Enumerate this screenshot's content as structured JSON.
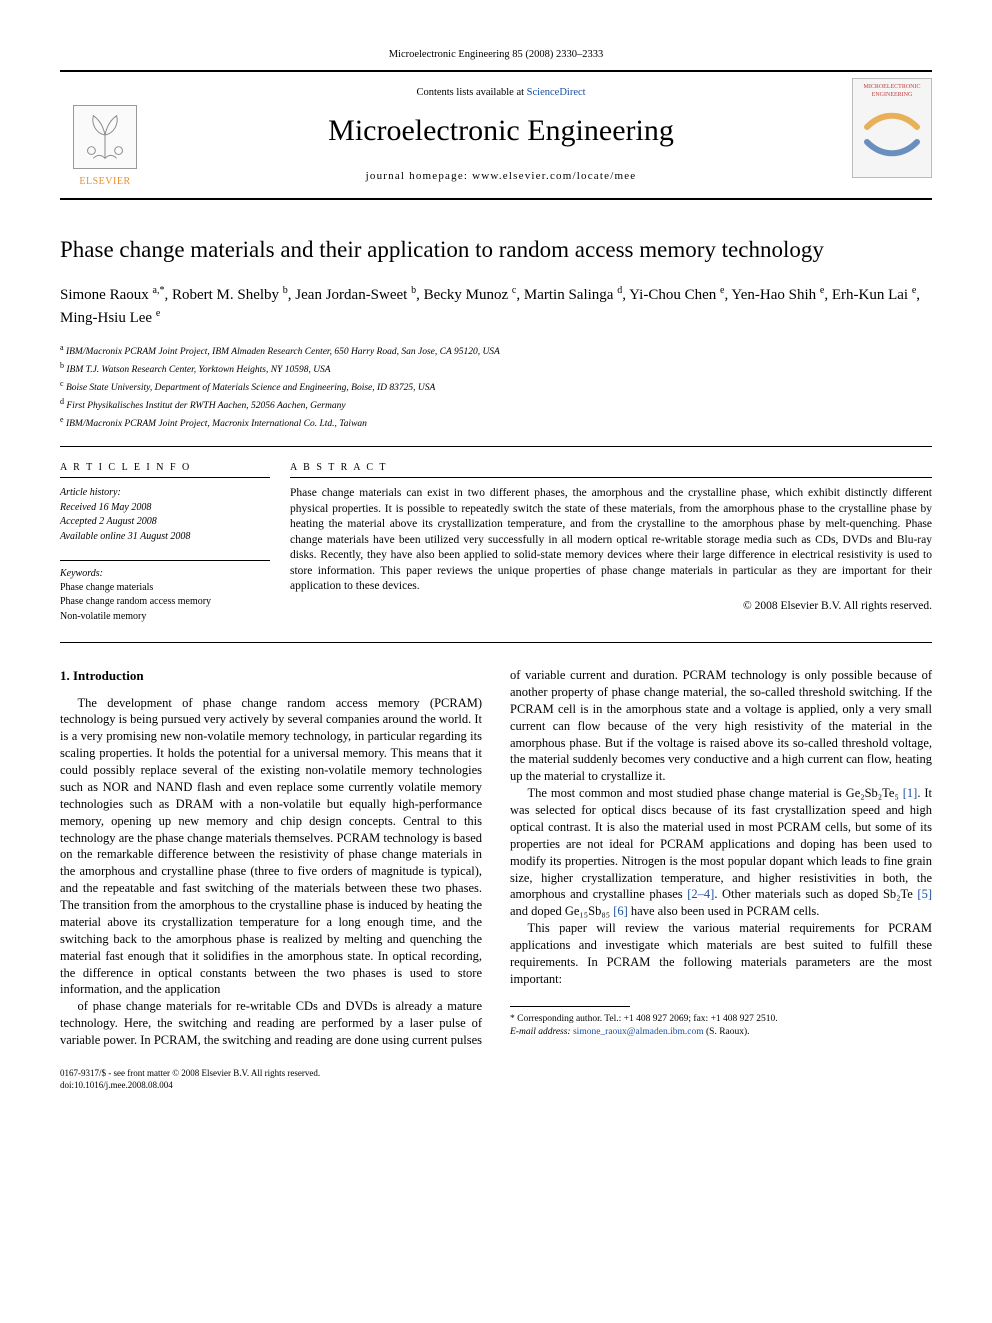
{
  "top_journal_line": "Microelectronic Engineering 85 (2008) 2330–2333",
  "header": {
    "contents_prefix": "Contents lists available at ",
    "contents_link": "ScienceDirect",
    "journal_title": "Microelectronic Engineering",
    "homepage_prefix": "journal homepage: ",
    "homepage_url": "www.elsevier.com/locate/mee",
    "publisher_name": "ELSEVIER",
    "cover_label_top": "MICROELECTRONIC",
    "cover_label_bottom": "ENGINEERING"
  },
  "article": {
    "title": "Phase change materials and their application to random access memory technology",
    "authors_html": "Simone Raoux <sup>a,*</sup>, Robert M. Shelby <sup>b</sup>, Jean Jordan-Sweet <sup>b</sup>, Becky Munoz <sup>c</sup>, Martin Salinga <sup>d</sup>, Yi-Chou Chen <sup>e</sup>, Yen-Hao Shih <sup>e</sup>, Erh-Kun Lai <sup>e</sup>, Ming-Hsiu Lee <sup>e</sup>",
    "affiliations": [
      "a IBM/Macronix PCRAM Joint Project, IBM Almaden Research Center, 650 Harry Road, San Jose, CA 95120, USA",
      "b IBM T.J. Watson Research Center, Yorktown Heights, NY 10598, USA",
      "c Boise State University, Department of Materials Science and Engineering, Boise, ID 83725, USA",
      "d First Physikalisches Institut der RWTH Aachen, 52056 Aachen, Germany",
      "e IBM/Macronix PCRAM Joint Project, Macronix International Co. Ltd., Taiwan"
    ]
  },
  "info": {
    "heading": "A R T I C L E   I N F O",
    "history_label": "Article history:",
    "history": [
      "Received 16 May 2008",
      "Accepted 2 August 2008",
      "Available online 31 August 2008"
    ],
    "keywords_label": "Keywords:",
    "keywords": [
      "Phase change materials",
      "Phase change random access memory",
      "Non-volatile memory"
    ]
  },
  "abstract": {
    "heading": "A B S T R A C T",
    "text": "Phase change materials can exist in two different phases, the amorphous and the crystalline phase, which exhibit distinctly different physical properties. It is possible to repeatedly switch the state of these materials, from the amorphous phase to the crystalline phase by heating the material above its crystallization temperature, and from the crystalline to the amorphous phase by melt-quenching. Phase change materials have been utilized very successfully in all modern optical re-writable storage media such as CDs, DVDs and Blu-ray disks. Recently, they have also been applied to solid-state memory devices where their large difference in electrical resistivity is used to store information. This paper reviews the unique properties of phase change materials in particular as they are important for their application to these devices.",
    "copyright": "© 2008 Elsevier B.V. All rights reserved."
  },
  "body": {
    "section_heading": "1. Introduction",
    "p1": "The development of phase change random access memory (PCRAM) technology is being pursued very actively by several companies around the world. It is a very promising new non-volatile memory technology, in particular regarding its scaling properties. It holds the potential for a universal memory. This means that it could possibly replace several of the existing non-volatile memory technologies such as NOR and NAND flash and even replace some currently volatile memory technologies such as DRAM with a non-volatile but equally high-performance memory, opening up new memory and chip design concepts. Central to this technology are the phase change materials themselves. PCRAM technology is based on the remarkable difference between the resistivity of phase change materials in the amorphous and crystalline phase (three to five orders of magnitude is typical), and the repeatable and fast switching of the materials between these two phases. The transition from the amorphous to the crystalline phase is induced by heating the material above its crystallization temperature for a long enough time, and the switching back to the amorphous phase is realized by melting and quenching the material fast enough that it solidifies in the amorphous state. In optical recording, the difference in optical constants between the two phases is used to store information, and the application",
    "p2a": "of phase change materials for re-writable CDs and DVDs is already a mature technology. Here, the switching and reading are performed by a laser pulse of variable power. In PCRAM, the switching and reading are done using current pulses of variable current and duration. PCRAM technology is only possible because of another property of phase change material, the so-called threshold switching. If the PCRAM cell is in the amorphous state and a voltage is applied, only a very small current can flow because of the very high resistivity of the material in the amorphous phase. But if the voltage is raised above its so-called threshold voltage, the material suddenly becomes very conductive and a high current can flow, heating up the material to crystallize it.",
    "p3_pre": "The most common and most studied phase change material is Ge₂Sb₂Te₅ ",
    "cite1": "[1]",
    "p3_mid": ". It was selected for optical discs because of its fast crystallization speed and high optical contrast. It is also the material used in most PCRAM cells, but some of its properties are not ideal for PCRAM applications and doping has been used to modify its properties. Nitrogen is the most popular dopant which leads to fine grain size, higher crystallization temperature, and higher resistivities in both, the amorphous and crystalline phases ",
    "cite24": "[2–4]",
    "p3_post1": ". Other materials such as doped Sb₂Te ",
    "cite5": "[5]",
    "p3_post2": " and doped Ge₁₅Sb₈₅ ",
    "cite6": "[6]",
    "p3_post3": " have also been used in PCRAM cells.",
    "p4": "This paper will review the various material requirements for PCRAM applications and investigate which materials are best suited to fulfill these requirements. In PCRAM the following materials parameters are the most important:"
  },
  "footnote": {
    "corr": "* Corresponding author. Tel.: +1 408 927 2069; fax: +1 408 927 2510.",
    "email_label": "E-mail address:",
    "email": "simone_raoux@almaden.ibm.com",
    "email_tail": " (S. Raoux)."
  },
  "footer": {
    "l1": "0167-9317/$ - see front matter © 2008 Elsevier B.V. All rights reserved.",
    "l2": "doi:10.1016/j.mee.2008.08.004"
  },
  "colors": {
    "link": "#1a4fa0",
    "rule": "#000000",
    "cover_accent": "#c04040",
    "elsevier_orange": "#e98f2e"
  }
}
